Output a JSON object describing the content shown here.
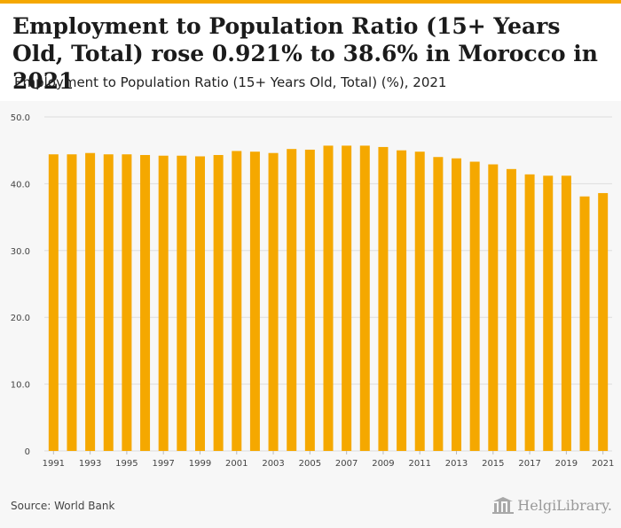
{
  "header": {
    "title": "Employment to Population Ratio (15+ Years Old, Total) rose 0.921% to 38.6% in Morocco in 2021",
    "subtitle": "Employment to Population Ratio (15+ Years Old, Total) (%), 2021"
  },
  "footer": {
    "source": "Source: World Bank",
    "logo_text": "HelgiLibrary."
  },
  "colors": {
    "accent": "#f5a800",
    "bar": "#f5a800",
    "grid": "#dddddd"
  },
  "chart_data": {
    "type": "bar",
    "title": "",
    "xlabel": "",
    "ylabel": "",
    "ylim": [
      0,
      50
    ],
    "yticks": [
      "0",
      "10.0",
      "20.0",
      "30.0",
      "40.0",
      "50.0"
    ],
    "categories": [
      "1991",
      "1992",
      "1993",
      "1994",
      "1995",
      "1996",
      "1997",
      "1998",
      "1999",
      "2000",
      "2001",
      "2002",
      "2003",
      "2004",
      "2005",
      "2006",
      "2007",
      "2008",
      "2009",
      "2010",
      "2011",
      "2012",
      "2013",
      "2014",
      "2015",
      "2016",
      "2017",
      "2018",
      "2019",
      "2020",
      "2021"
    ],
    "xtick_labels": [
      "1991",
      "1993",
      "1995",
      "1997",
      "1999",
      "2001",
      "2003",
      "2005",
      "2007",
      "2009",
      "2011",
      "2013",
      "2015",
      "2017",
      "2019",
      "2021"
    ],
    "values": [
      44.4,
      44.4,
      44.6,
      44.4,
      44.4,
      44.3,
      44.2,
      44.2,
      44.1,
      44.3,
      44.9,
      44.8,
      44.6,
      45.2,
      45.1,
      45.7,
      45.7,
      45.7,
      45.5,
      45.0,
      44.8,
      44.0,
      43.8,
      43.3,
      42.9,
      42.2,
      41.4,
      41.2,
      41.2,
      38.1,
      38.6
    ]
  }
}
